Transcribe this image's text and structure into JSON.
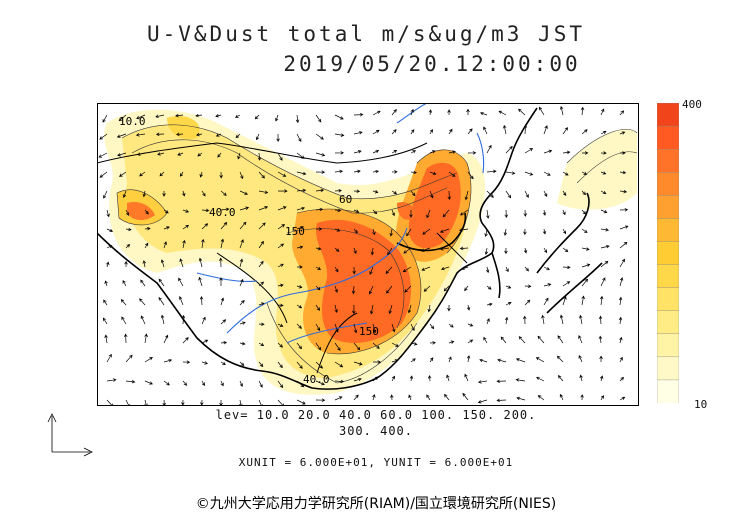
{
  "header": {
    "title_line1": "U-V&Dust total m/s&ug/m3 JST",
    "title_line2": "2019/05/20.12:00:00"
  },
  "legend": {
    "max_label": "400",
    "min_label": "10",
    "colors": [
      "#ffffe6",
      "#fff9c8",
      "#fff3a6",
      "#ffec85",
      "#ffe266",
      "#ffd84a",
      "#ffcc33",
      "#ffb833",
      "#ffa030",
      "#ff8a2c",
      "#ff7328",
      "#ff5a22",
      "#f2441a"
    ]
  },
  "levels": {
    "line1": "lev= 10.0 20.0 40.0 60.0 100. 150. 200.",
    "line2": "300. 400."
  },
  "units": "XUNIT = 6.000E+01, YUNIT = 6.000E+01",
  "credit": "©九州大学応用力学研究所(RIAM)/国立環境研究所(NIES)",
  "contour_labels": {
    "l1": "10.0",
    "l2": "40.0",
    "l3": "150",
    "l4": "60",
    "l5": "150",
    "l6": "40.0"
  }
}
